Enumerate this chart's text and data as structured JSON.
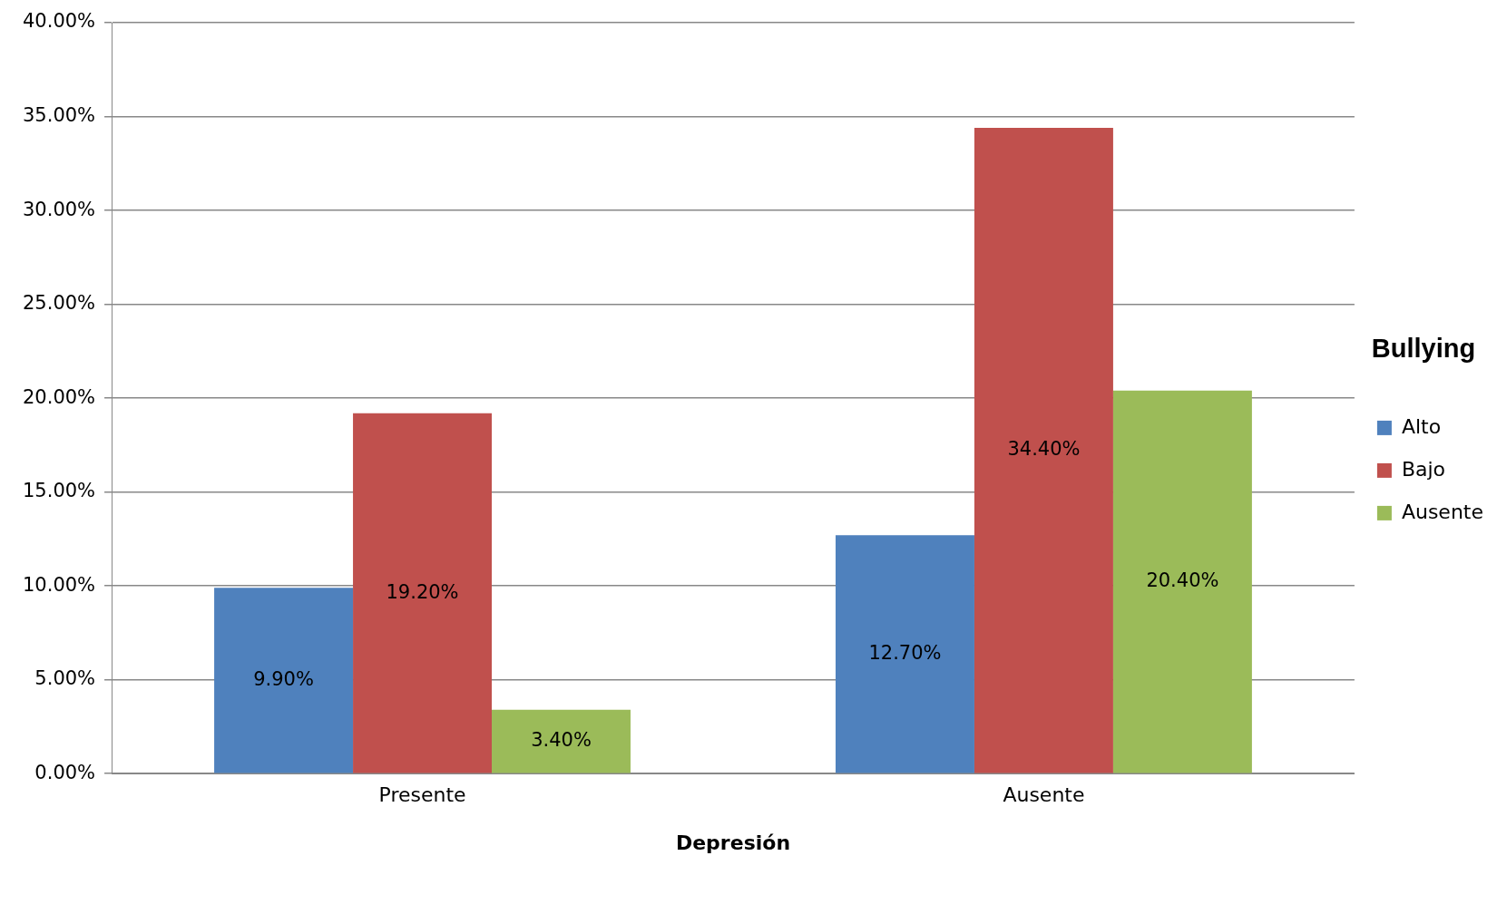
{
  "chart_data": {
    "type": "bar",
    "xlabel": "Depresión",
    "legend_title": "Bullying",
    "legend": "right",
    "grid": "y",
    "categories": [
      "Presente",
      "Ausente"
    ],
    "ylim": [
      0,
      40
    ],
    "yticks": [
      {
        "value": 0,
        "label": "0.00%"
      },
      {
        "value": 5,
        "label": "5.00%"
      },
      {
        "value": 10,
        "label": "10.00%"
      },
      {
        "value": 15,
        "label": "15.00%"
      },
      {
        "value": 20,
        "label": "20.00%"
      },
      {
        "value": 25,
        "label": "25.00%"
      },
      {
        "value": 30,
        "label": "30.00%"
      },
      {
        "value": 35,
        "label": "35.00%"
      },
      {
        "value": 40,
        "label": "40.00%"
      }
    ],
    "series": [
      {
        "name": "Alto",
        "color": "#4f81bd",
        "values": [
          9.9,
          12.7
        ],
        "value_labels": [
          "9.90%",
          "12.70%"
        ]
      },
      {
        "name": "Bajo",
        "color": "#c0504d",
        "values": [
          19.2,
          34.4
        ],
        "value_labels": [
          "19.20%",
          "34.40%"
        ]
      },
      {
        "name": "Ausente",
        "color": "#9bbb59",
        "values": [
          3.4,
          20.4
        ],
        "value_labels": [
          "3.40%",
          "20.40%"
        ]
      }
    ]
  }
}
